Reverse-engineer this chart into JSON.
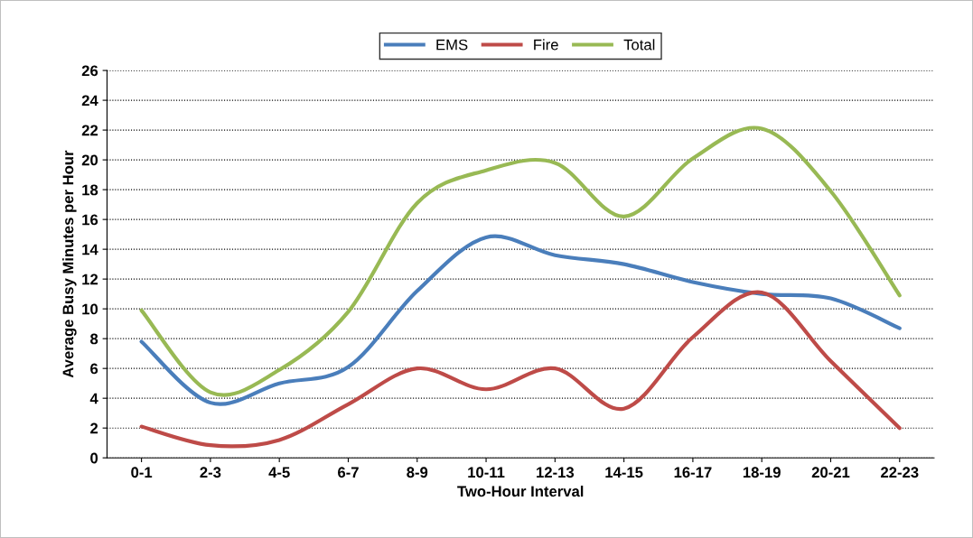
{
  "chart_data": {
    "type": "line",
    "xlabel": "Two-Hour Interval",
    "ylabel": "Average Busy Minutes per Hour",
    "categories": [
      "0-1",
      "2-3",
      "4-5",
      "6-7",
      "8-9",
      "10-11",
      "12-13",
      "14-15",
      "16-17",
      "18-19",
      "20-21",
      "22-23"
    ],
    "series": [
      {
        "name": "EMS",
        "color": "#4a7ebb",
        "values": [
          7.8,
          3.7,
          5.0,
          6.1,
          11.2,
          14.8,
          13.6,
          13.0,
          11.8,
          11.0,
          10.7,
          8.7
        ]
      },
      {
        "name": "Fire",
        "color": "#be4b48",
        "values": [
          2.1,
          0.85,
          1.2,
          3.6,
          6.0,
          4.6,
          6.0,
          3.3,
          8.1,
          11.1,
          6.5,
          2.0
        ]
      },
      {
        "name": "Total",
        "color": "#98b954",
        "values": [
          9.9,
          4.4,
          5.9,
          9.8,
          17.1,
          19.3,
          19.8,
          16.2,
          20.1,
          22.1,
          17.9,
          10.9
        ]
      }
    ],
    "ylim": [
      0,
      26
    ],
    "yticks": [
      0,
      2,
      4,
      6,
      8,
      10,
      12,
      14,
      16,
      18,
      20,
      22,
      24,
      26
    ],
    "grid": "y",
    "legend": "top",
    "marker": "none",
    "line_style": "solid"
  }
}
